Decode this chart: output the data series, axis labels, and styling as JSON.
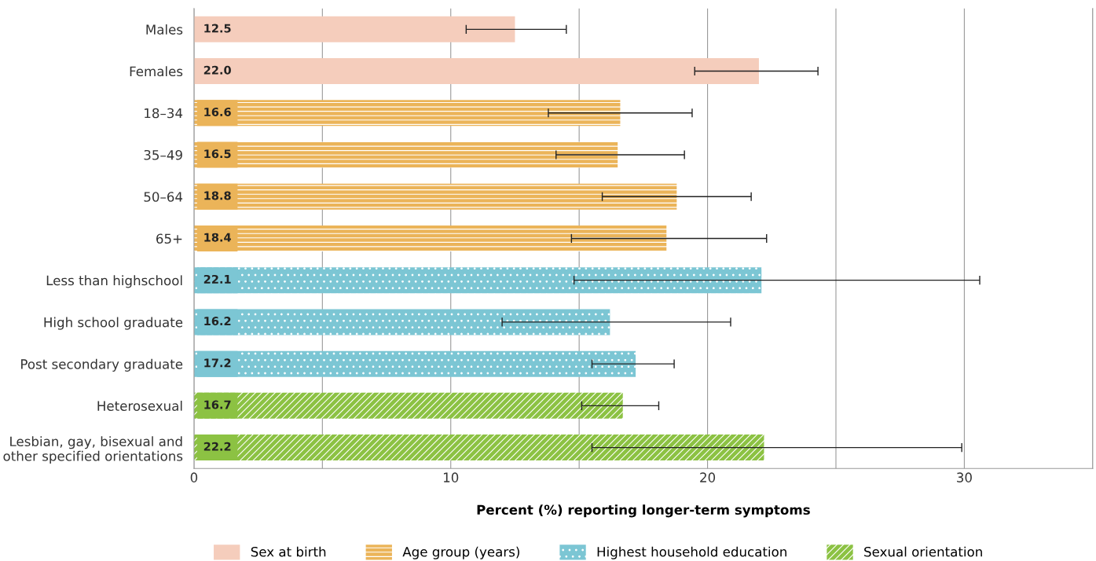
{
  "chart_data": {
    "type": "bar",
    "orientation": "horizontal",
    "xlabel": "Percent (%) reporting longer-term symptoms",
    "categories": [
      "Males",
      "Females",
      "18–34",
      "35–49",
      "50–64",
      "65+",
      "Less than highschool",
      "High school graduate",
      "Post secondary graduate",
      "Heterosexual",
      "Lesbian, gay, bisexual and\nother specified orientations"
    ],
    "series": [
      {
        "name": "Sex at birth",
        "color": "#f5cdbc",
        "values": [
          12.5,
          22.0,
          null,
          null,
          null,
          null,
          null,
          null,
          null,
          null,
          null
        ],
        "value_labels": [
          "12.5",
          "22.0",
          null,
          null,
          null,
          null,
          null,
          null,
          null,
          null,
          null
        ],
        "errors": [
          [
            10.6,
            14.5
          ],
          [
            19.5,
            24.3
          ],
          null,
          null,
          null,
          null,
          null,
          null,
          null,
          null,
          null
        ]
      },
      {
        "name": "Age group (years)",
        "color": "#ebb459",
        "values": [
          null,
          null,
          16.6,
          16.5,
          18.8,
          18.4,
          null,
          null,
          null,
          null,
          null
        ],
        "value_labels": [
          null,
          null,
          "16.6",
          "16.5",
          "18.8",
          "18.4",
          null,
          null,
          null,
          null,
          null
        ],
        "errors": [
          null,
          null,
          [
            13.8,
            19.4
          ],
          [
            14.1,
            19.1
          ],
          [
            15.9,
            21.7
          ],
          [
            14.7,
            22.3
          ],
          null,
          null,
          null,
          null,
          null
        ]
      },
      {
        "name": "Highest household education",
        "color": "#7cc6d4",
        "values": [
          null,
          null,
          null,
          null,
          null,
          null,
          22.1,
          16.2,
          17.2,
          null,
          null
        ],
        "value_labels": [
          null,
          null,
          null,
          null,
          null,
          null,
          "22.1",
          "16.2",
          "17.2",
          null,
          null
        ],
        "errors": [
          null,
          null,
          null,
          null,
          null,
          null,
          [
            14.8,
            30.6
          ],
          [
            12.0,
            20.9
          ],
          [
            15.5,
            18.7
          ],
          null,
          null
        ]
      },
      {
        "name": "Sexual orientation",
        "color": "#8cc243",
        "values": [
          null,
          null,
          null,
          null,
          null,
          null,
          null,
          null,
          null,
          16.7,
          22.2
        ],
        "value_labels": [
          null,
          null,
          null,
          null,
          null,
          null,
          null,
          null,
          null,
          "16.7",
          "22.2"
        ],
        "errors": [
          null,
          null,
          null,
          null,
          null,
          null,
          null,
          null,
          null,
          [
            15.1,
            18.1
          ],
          [
            15.5,
            29.9
          ]
        ]
      }
    ],
    "xlim": [
      0,
      35
    ],
    "xticks": [
      0,
      {
        "value": 5,
        "label": null
      },
      10,
      {
        "value": 15,
        "label": null
      },
      20,
      {
        "value": 25,
        "label": null
      },
      30,
      {
        "value": 35,
        "label": null
      }
    ],
    "grid": "x",
    "legend": "bottom"
  }
}
